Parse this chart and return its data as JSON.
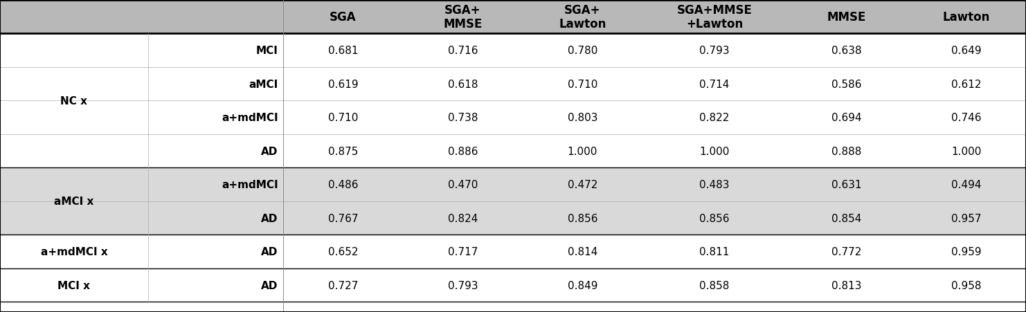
{
  "col_headers": [
    "SGA",
    "SGA+\nMMSE",
    "SGA+\nLawton",
    "SGA+MMSE\n+Lawton",
    "MMSE",
    "Lawton"
  ],
  "row_groups": [
    {
      "group_label": "NC x",
      "bg_color": "#ffffff",
      "rows": [
        {
          "sub_label": "MCI",
          "values": [
            "0.681",
            "0.716",
            "0.780",
            "0.793",
            "0.638",
            "0.649"
          ]
        },
        {
          "sub_label": "aMCI",
          "values": [
            "0.619",
            "0.618",
            "0.710",
            "0.714",
            "0.586",
            "0.612"
          ]
        },
        {
          "sub_label": "a+mdMCI",
          "values": [
            "0.710",
            "0.738",
            "0.803",
            "0.822",
            "0.694",
            "0.746"
          ]
        },
        {
          "sub_label": "AD",
          "values": [
            "0.875",
            "0.886",
            "1.000",
            "1.000",
            "0.888",
            "1.000"
          ]
        }
      ]
    },
    {
      "group_label": "aMCI x",
      "bg_color": "#d9d9d9",
      "rows": [
        {
          "sub_label": "a+mdMCI",
          "values": [
            "0.486",
            "0.470",
            "0.472",
            "0.483",
            "0.631",
            "0.494"
          ]
        },
        {
          "sub_label": "AD",
          "values": [
            "0.767",
            "0.824",
            "0.856",
            "0.856",
            "0.854",
            "0.957"
          ]
        }
      ]
    },
    {
      "group_label": "a+mdMCI x",
      "bg_color": "#ffffff",
      "rows": [
        {
          "sub_label": "AD",
          "values": [
            "0.652",
            "0.717",
            "0.814",
            "0.811",
            "0.772",
            "0.959"
          ]
        }
      ]
    },
    {
      "group_label": "MCI x",
      "bg_color": "#ffffff",
      "rows": [
        {
          "sub_label": "AD",
          "values": [
            "0.727",
            "0.793",
            "0.849",
            "0.858",
            "0.813",
            "0.958"
          ]
        }
      ]
    }
  ],
  "header_bg": "#b8b8b8",
  "header_fontsize": 12,
  "cell_fontsize": 11,
  "label_fontsize": 11,
  "figsize": [
    14.82,
    4.52
  ],
  "dpi": 100
}
